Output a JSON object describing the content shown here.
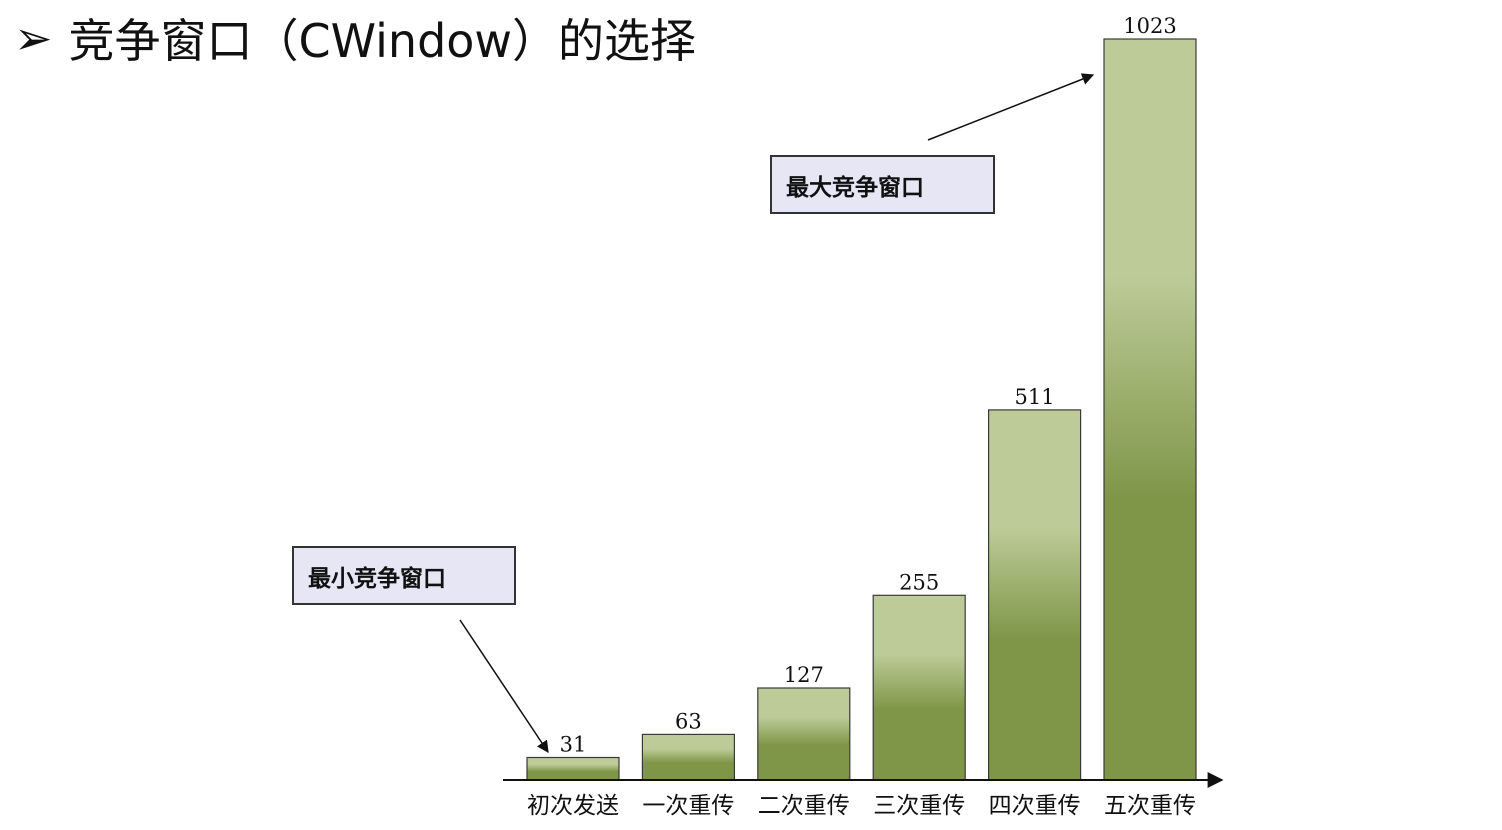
{
  "slide": {
    "title": "竞争窗口（CWindow）的选择",
    "bullet": "➢"
  },
  "annotations": {
    "max_label": "最大竞争窗口",
    "min_label": "最小竞争窗口"
  },
  "colors": {
    "bar_top": "#bccb98",
    "bar_bottom": "#7f9648",
    "bar_stroke": "#3a3a3a",
    "axis": "#111111",
    "annotation_fill": "#e6e6f5"
  },
  "chart_data": {
    "type": "bar",
    "title": "",
    "xlabel": "",
    "ylabel": "",
    "categories": [
      "初次发送",
      "一次重传",
      "二次重传",
      "三次重传",
      "四次重传",
      "五次重传"
    ],
    "values": [
      31,
      63,
      127,
      255,
      511,
      1023
    ],
    "data_labels": [
      "31",
      "63",
      "127",
      "255",
      "511",
      "1023"
    ],
    "ylim": [
      0,
      1023
    ],
    "grid": false,
    "legend": "none"
  }
}
